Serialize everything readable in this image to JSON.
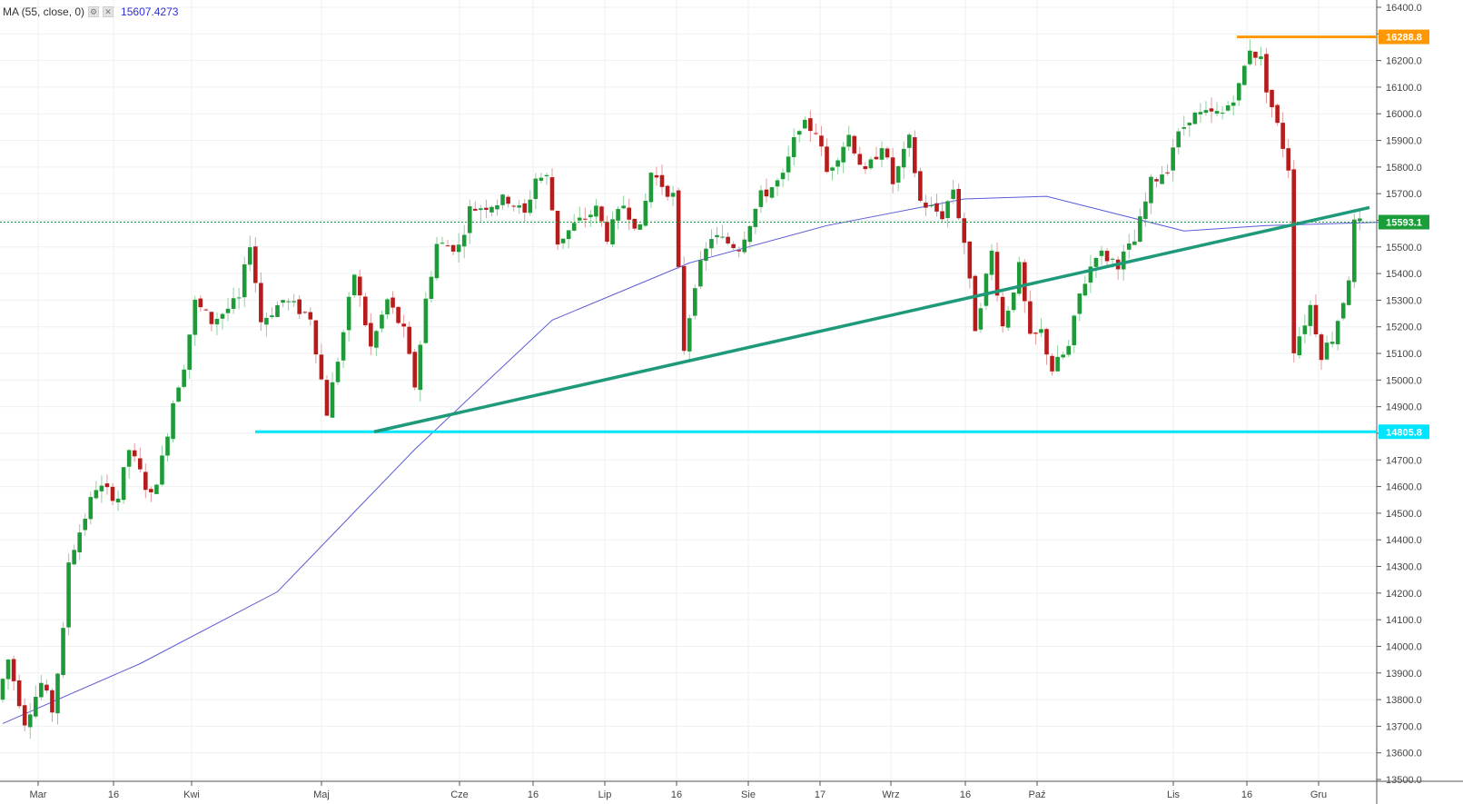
{
  "indicator": {
    "label": "MA (55, close, 0)",
    "value": "15607.4273",
    "settings_icon": "gear-icon",
    "close_icon": "close-icon"
  },
  "chart_data": {
    "type": "candlestick",
    "title": "",
    "xlabel": "",
    "ylabel": "",
    "ylim": [
      13500,
      16400
    ],
    "grid": true,
    "x_tick_labels": [
      "Mar",
      "16",
      "Kwi",
      "Maj",
      "Cze",
      "16",
      "Lip",
      "16",
      "Sie",
      "17",
      "Wrz",
      "16",
      "Paź",
      "Lis",
      "16",
      "Gru"
    ],
    "y_tick_labels": [
      "16400.0",
      "16300.0",
      "16200.0",
      "16100.0",
      "16000.0",
      "15900.0",
      "15800.0",
      "15700.0",
      "15600.0",
      "15500.0",
      "15400.0",
      "15300.0",
      "15200.0",
      "15100.0",
      "15000.0",
      "14900.0",
      "14800.0",
      "14700.0",
      "14600.0",
      "14500.0",
      "14400.0",
      "14300.0",
      "14200.0",
      "14100.0",
      "14000.0",
      "13900.0",
      "13800.0",
      "13700.0",
      "13600.0",
      "13500.0"
    ],
    "price_labels": [
      {
        "text": "16288.8",
        "value": 16288.8,
        "color": "#ff9800"
      },
      {
        "text": "15593.1",
        "value": 15593.1,
        "color": "#1b9e3a"
      },
      {
        "text": "14805.8",
        "value": 14805.8,
        "color": "#00e5ff"
      }
    ],
    "horizontal_levels": [
      {
        "value": 16288.8,
        "color": "#ff9800"
      },
      {
        "value": 14805.8,
        "color": "#00e5ff"
      }
    ],
    "trendline": {
      "color": "#1e9a7a",
      "from": {
        "bar": 72,
        "value": 14805.8
      },
      "to": {
        "bar": 258,
        "value": 15648
      }
    },
    "ma_line_color": "#5b5bd6",
    "up_color": "#1e9a38",
    "down_color": "#b71c1c",
    "ma_series": [
      [
        0,
        13710
      ],
      [
        25,
        13935
      ],
      [
        50,
        14205
      ],
      [
        75,
        14740
      ],
      [
        100,
        15225
      ],
      [
        125,
        15440
      ],
      [
        150,
        15580
      ],
      [
        175,
        15680
      ],
      [
        190,
        15690
      ],
      [
        215,
        15560
      ],
      [
        230,
        15580
      ],
      [
        255,
        15595
      ]
    ],
    "price_path": [
      [
        0,
        13800
      ],
      [
        2,
        13950
      ],
      [
        5,
        13720
      ],
      [
        8,
        13860
      ],
      [
        10,
        13760
      ],
      [
        12,
        14050
      ],
      [
        13,
        14320
      ],
      [
        18,
        14600
      ],
      [
        22,
        14560
      ],
      [
        24,
        14740
      ],
      [
        28,
        14560
      ],
      [
        30,
        14700
      ],
      [
        32,
        14920
      ],
      [
        34,
        15060
      ],
      [
        36,
        15290
      ],
      [
        39,
        15220
      ],
      [
        44,
        15300
      ],
      [
        46,
        15520
      ],
      [
        48,
        15220
      ],
      [
        52,
        15300
      ],
      [
        57,
        15240
      ],
      [
        60,
        14880
      ],
      [
        63,
        15180
      ],
      [
        65,
        15400
      ],
      [
        68,
        15120
      ],
      [
        71,
        15300
      ],
      [
        74,
        15180
      ],
      [
        76,
        14980
      ],
      [
        78,
        15300
      ],
      [
        80,
        15510
      ],
      [
        84,
        15500
      ],
      [
        86,
        15640
      ],
      [
        93,
        15680
      ],
      [
        96,
        15620
      ],
      [
        98,
        15760
      ],
      [
        100,
        15760
      ],
      [
        102,
        15520
      ],
      [
        105,
        15580
      ],
      [
        109,
        15640
      ],
      [
        111,
        15540
      ],
      [
        114,
        15660
      ],
      [
        117,
        15560
      ],
      [
        119,
        15780
      ],
      [
        123,
        15690
      ],
      [
        125,
        15120
      ],
      [
        127,
        15370
      ],
      [
        130,
        15540
      ],
      [
        135,
        15500
      ],
      [
        139,
        15690
      ],
      [
        143,
        15760
      ],
      [
        146,
        15960
      ],
      [
        149,
        15940
      ],
      [
        151,
        15780
      ],
      [
        155,
        15920
      ],
      [
        158,
        15770
      ],
      [
        161,
        15890
      ],
      [
        163,
        15740
      ],
      [
        166,
        15900
      ],
      [
        168,
        15670
      ],
      [
        172,
        15620
      ],
      [
        174,
        15720
      ],
      [
        176,
        15520
      ],
      [
        178,
        15200
      ],
      [
        181,
        15480
      ],
      [
        183,
        15200
      ],
      [
        186,
        15420
      ],
      [
        188,
        15150
      ],
      [
        190,
        15180
      ],
      [
        192,
        15040
      ],
      [
        195,
        15120
      ],
      [
        197,
        15320
      ],
      [
        200,
        15480
      ],
      [
        204,
        15440
      ],
      [
        207,
        15520
      ],
      [
        210,
        15740
      ],
      [
        213,
        15800
      ],
      [
        214,
        15880
      ],
      [
        217,
        15990
      ],
      [
        223,
        16000
      ],
      [
        226,
        16100
      ],
      [
        228,
        16250
      ],
      [
        230,
        16200
      ],
      [
        231,
        16100
      ],
      [
        234,
        15880
      ],
      [
        235,
        15800
      ],
      [
        236,
        15120
      ],
      [
        238,
        15220
      ],
      [
        239,
        15280
      ],
      [
        241,
        15100
      ],
      [
        243,
        15160
      ],
      [
        245,
        15300
      ],
      [
        246,
        15390
      ],
      [
        247,
        15585
      ]
    ]
  }
}
